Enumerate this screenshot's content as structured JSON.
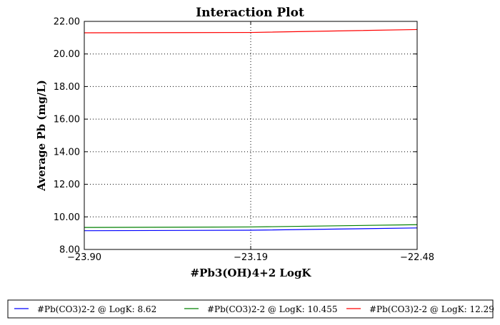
{
  "chart_data": {
    "type": "line",
    "title": "Interaction Plot",
    "xlabel": "#Pb3(OH)4+2 LogK",
    "ylabel": "Average Pb (mg/L)",
    "x": [
      -23.9,
      -23.19,
      -22.48
    ],
    "x_tick_labels": [
      "−23.90",
      "−23.19",
      "−22.48"
    ],
    "xlim": [
      -23.9,
      -22.48
    ],
    "y_ticks": [
      8,
      10,
      12,
      14,
      16,
      18,
      20,
      22
    ],
    "y_tick_labels": [
      "8.00",
      "10.00",
      "12.00",
      "14.00",
      "16.00",
      "18.00",
      "20.00",
      "22.00"
    ],
    "ylim": [
      8,
      22
    ],
    "grid": true,
    "legend_placement": "bottom",
    "series": [
      {
        "name": "#Pb(CO3)2-2 @ LogK: 8.62",
        "color": "#0000ff",
        "values": [
          9.15,
          9.18,
          9.32
        ]
      },
      {
        "name": "#Pb(CO3)2-2 @ LogK: 10.455",
        "color": "#008000",
        "values": [
          9.35,
          9.38,
          9.52
        ]
      },
      {
        "name": "#Pb(CO3)2-2 @ LogK: 12.29",
        "color": "#ff0000",
        "values": [
          21.3,
          21.32,
          21.5
        ]
      }
    ]
  }
}
